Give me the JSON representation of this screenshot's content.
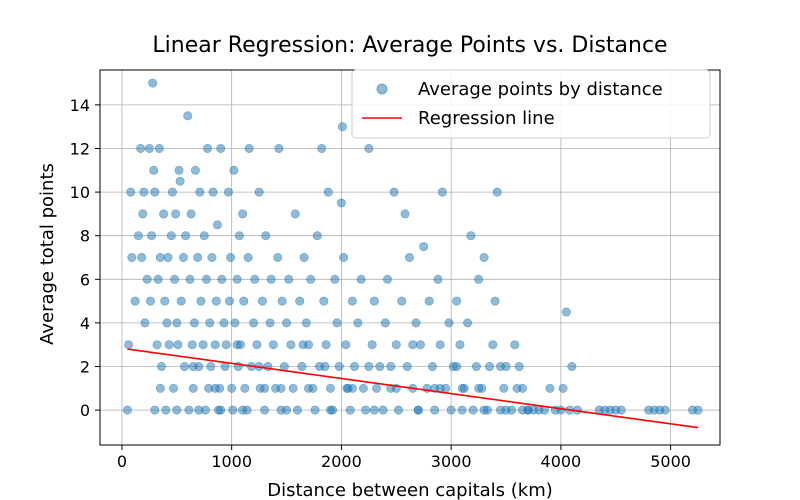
{
  "chart_data": {
    "type": "scatter",
    "title": "Linear Regression: Average Points vs. Distance",
    "xlabel": "Distance between capitals (km)",
    "ylabel": "Average total points",
    "xlim": [
      -200,
      5450
    ],
    "ylim": [
      -1.6,
      15.6
    ],
    "xticks": [
      0,
      1000,
      2000,
      3000,
      4000,
      5000
    ],
    "yticks": [
      0,
      2,
      4,
      6,
      8,
      10,
      12,
      14
    ],
    "grid": true,
    "legend_position": "top-right",
    "colors": {
      "points": "#1f77b4",
      "line": "#ff0000"
    },
    "series": [
      {
        "name": "Average points by distance",
        "kind": "scatter",
        "points": [
          [
            50,
            0
          ],
          [
            60,
            3
          ],
          [
            80,
            10
          ],
          [
            90,
            7
          ],
          [
            120,
            5
          ],
          [
            150,
            8
          ],
          [
            170,
            12
          ],
          [
            180,
            7
          ],
          [
            190,
            9
          ],
          [
            200,
            10
          ],
          [
            210,
            4
          ],
          [
            230,
            6
          ],
          [
            250,
            12
          ],
          [
            260,
            5
          ],
          [
            270,
            8
          ],
          [
            280,
            15
          ],
          [
            290,
            11
          ],
          [
            300,
            10
          ],
          [
            320,
            3
          ],
          [
            330,
            6
          ],
          [
            340,
            12
          ],
          [
            350,
            7
          ],
          [
            360,
            2
          ],
          [
            380,
            9
          ],
          [
            390,
            5
          ],
          [
            400,
            0
          ],
          [
            410,
            4
          ],
          [
            420,
            7
          ],
          [
            430,
            3
          ],
          [
            450,
            8
          ],
          [
            460,
            10
          ],
          [
            470,
            1
          ],
          [
            480,
            6
          ],
          [
            490,
            9
          ],
          [
            500,
            4
          ],
          [
            510,
            3
          ],
          [
            520,
            11
          ],
          [
            530,
            10.5
          ],
          [
            540,
            5
          ],
          [
            560,
            7
          ],
          [
            570,
            2
          ],
          [
            580,
            8
          ],
          [
            600,
            13.5
          ],
          [
            610,
            0
          ],
          [
            620,
            6
          ],
          [
            630,
            9
          ],
          [
            640,
            3
          ],
          [
            650,
            1
          ],
          [
            660,
            4
          ],
          [
            670,
            11
          ],
          [
            690,
            7
          ],
          [
            700,
            2
          ],
          [
            710,
            10
          ],
          [
            720,
            5
          ],
          [
            740,
            3
          ],
          [
            750,
            8
          ],
          [
            760,
            0
          ],
          [
            770,
            6
          ],
          [
            780,
            12
          ],
          [
            790,
            1
          ],
          [
            800,
            4
          ],
          [
            810,
            2
          ],
          [
            820,
            7
          ],
          [
            830,
            10
          ],
          [
            850,
            3
          ],
          [
            860,
            5
          ],
          [
            870,
            8.5
          ],
          [
            880,
            0
          ],
          [
            890,
            1
          ],
          [
            900,
            12
          ],
          [
            910,
            6
          ],
          [
            930,
            4
          ],
          [
            940,
            2
          ],
          [
            950,
            3
          ],
          [
            970,
            10
          ],
          [
            980,
            5
          ],
          [
            990,
            7
          ],
          [
            1000,
            1
          ],
          [
            1010,
            0
          ],
          [
            1020,
            11
          ],
          [
            1030,
            4
          ],
          [
            1050,
            6
          ],
          [
            1060,
            2
          ],
          [
            1070,
            8
          ],
          [
            1080,
            3
          ],
          [
            1100,
            9
          ],
          [
            1110,
            5
          ],
          [
            1120,
            1
          ],
          [
            1140,
            0
          ],
          [
            1150,
            7
          ],
          [
            1160,
            12
          ],
          [
            1180,
            2
          ],
          [
            1200,
            4
          ],
          [
            1210,
            6
          ],
          [
            1230,
            3
          ],
          [
            1250,
            10
          ],
          [
            1260,
            1
          ],
          [
            1280,
            5
          ],
          [
            1300,
            0
          ],
          [
            1310,
            8
          ],
          [
            1330,
            2
          ],
          [
            1350,
            4
          ],
          [
            1360,
            6
          ],
          [
            1380,
            3
          ],
          [
            1400,
            1
          ],
          [
            1420,
            7
          ],
          [
            1430,
            12
          ],
          [
            1450,
            0
          ],
          [
            1460,
            5
          ],
          [
            1480,
            2
          ],
          [
            1500,
            4
          ],
          [
            1520,
            6
          ],
          [
            1540,
            3
          ],
          [
            1560,
            1
          ],
          [
            1580,
            9
          ],
          [
            1600,
            0
          ],
          [
            1620,
            5
          ],
          [
            1640,
            2
          ],
          [
            1660,
            7
          ],
          [
            1680,
            4
          ],
          [
            1700,
            3
          ],
          [
            1720,
            6
          ],
          [
            1740,
            1
          ],
          [
            1760,
            0
          ],
          [
            1780,
            8
          ],
          [
            1800,
            2
          ],
          [
            1820,
            12
          ],
          [
            1840,
            5
          ],
          [
            1860,
            3
          ],
          [
            1880,
            10
          ],
          [
            1900,
            1
          ],
          [
            1920,
            0
          ],
          [
            1940,
            6
          ],
          [
            1960,
            4
          ],
          [
            1980,
            2
          ],
          [
            2000,
            9.5
          ],
          [
            2010,
            13
          ],
          [
            2020,
            7
          ],
          [
            2040,
            3
          ],
          [
            2060,
            1
          ],
          [
            2080,
            0
          ],
          [
            2100,
            5
          ],
          [
            2120,
            2
          ],
          [
            2150,
            4
          ],
          [
            2180,
            6
          ],
          [
            2200,
            1
          ],
          [
            2220,
            0
          ],
          [
            2250,
            12
          ],
          [
            2280,
            3
          ],
          [
            2300,
            5
          ],
          [
            2320,
            1
          ],
          [
            2350,
            2
          ],
          [
            2380,
            0
          ],
          [
            2400,
            4
          ],
          [
            2420,
            6
          ],
          [
            2450,
            1
          ],
          [
            2480,
            10
          ],
          [
            2500,
            3
          ],
          [
            2520,
            0
          ],
          [
            2550,
            5
          ],
          [
            2580,
            9
          ],
          [
            2600,
            2
          ],
          [
            2620,
            7
          ],
          [
            2650,
            1
          ],
          [
            2680,
            4
          ],
          [
            2700,
            0
          ],
          [
            2720,
            3
          ],
          [
            2750,
            7.5
          ],
          [
            2780,
            1
          ],
          [
            2800,
            5
          ],
          [
            2830,
            2
          ],
          [
            2850,
            0
          ],
          [
            2880,
            6
          ],
          [
            2900,
            3
          ],
          [
            2920,
            10
          ],
          [
            2950,
            1
          ],
          [
            2980,
            4
          ],
          [
            3000,
            0
          ],
          [
            3020,
            2
          ],
          [
            3050,
            5
          ],
          [
            3080,
            3
          ],
          [
            3100,
            0
          ],
          [
            3120,
            1
          ],
          [
            3150,
            4
          ],
          [
            3180,
            8
          ],
          [
            3200,
            0
          ],
          [
            3230,
            2
          ],
          [
            3250,
            6
          ],
          [
            3280,
            1
          ],
          [
            3300,
            7
          ],
          [
            3330,
            0
          ],
          [
            3350,
            2
          ],
          [
            3380,
            3
          ],
          [
            3400,
            5
          ],
          [
            3420,
            10
          ],
          [
            3450,
            0
          ],
          [
            3480,
            1
          ],
          [
            3500,
            2
          ],
          [
            3550,
            0
          ],
          [
            3580,
            3
          ],
          [
            3600,
            1
          ],
          [
            3620,
            2
          ],
          [
            3650,
            0
          ],
          [
            3700,
            0
          ],
          [
            3750,
            0
          ],
          [
            3800,
            0
          ],
          [
            3850,
            0
          ],
          [
            3900,
            1
          ],
          [
            3950,
            0
          ],
          [
            4000,
            0
          ],
          [
            4020,
            1
          ],
          [
            4050,
            4.5
          ],
          [
            4080,
            0
          ],
          [
            4100,
            2
          ],
          [
            4150,
            0
          ],
          [
            4350,
            0
          ],
          [
            4400,
            0
          ],
          [
            4450,
            0
          ],
          [
            4500,
            0
          ],
          [
            4550,
            0
          ],
          [
            4800,
            0
          ],
          [
            4850,
            0
          ],
          [
            4900,
            0
          ],
          [
            4950,
            0
          ],
          [
            5200,
            0
          ],
          [
            5250,
            0
          ],
          [
            300,
            0
          ],
          [
            500,
            0
          ],
          [
            700,
            0
          ],
          [
            900,
            0
          ],
          [
            1100,
            0
          ],
          [
            1300,
            1
          ],
          [
            1500,
            0
          ],
          [
            1700,
            1
          ],
          [
            1900,
            0
          ],
          [
            2100,
            1
          ],
          [
            2300,
            0
          ],
          [
            2500,
            1
          ],
          [
            2700,
            0
          ],
          [
            2900,
            1
          ],
          [
            3100,
            1
          ],
          [
            3300,
            0
          ],
          [
            3500,
            0
          ],
          [
            3700,
            0
          ],
          [
            350,
            1
          ],
          [
            650,
            2
          ],
          [
            850,
            1
          ],
          [
            1050,
            3
          ],
          [
            1250,
            2
          ],
          [
            1450,
            1
          ],
          [
            1650,
            3
          ],
          [
            1850,
            2
          ],
          [
            2050,
            1
          ],
          [
            2250,
            2
          ],
          [
            2450,
            2
          ],
          [
            2650,
            3
          ],
          [
            2850,
            1
          ],
          [
            3050,
            2
          ],
          [
            3250,
            1
          ],
          [
            3450,
            2
          ],
          [
            3650,
            1
          ]
        ]
      },
      {
        "name": "Regression line",
        "kind": "line",
        "points": [
          [
            50,
            2.8
          ],
          [
            5250,
            -0.8
          ]
        ]
      }
    ]
  }
}
